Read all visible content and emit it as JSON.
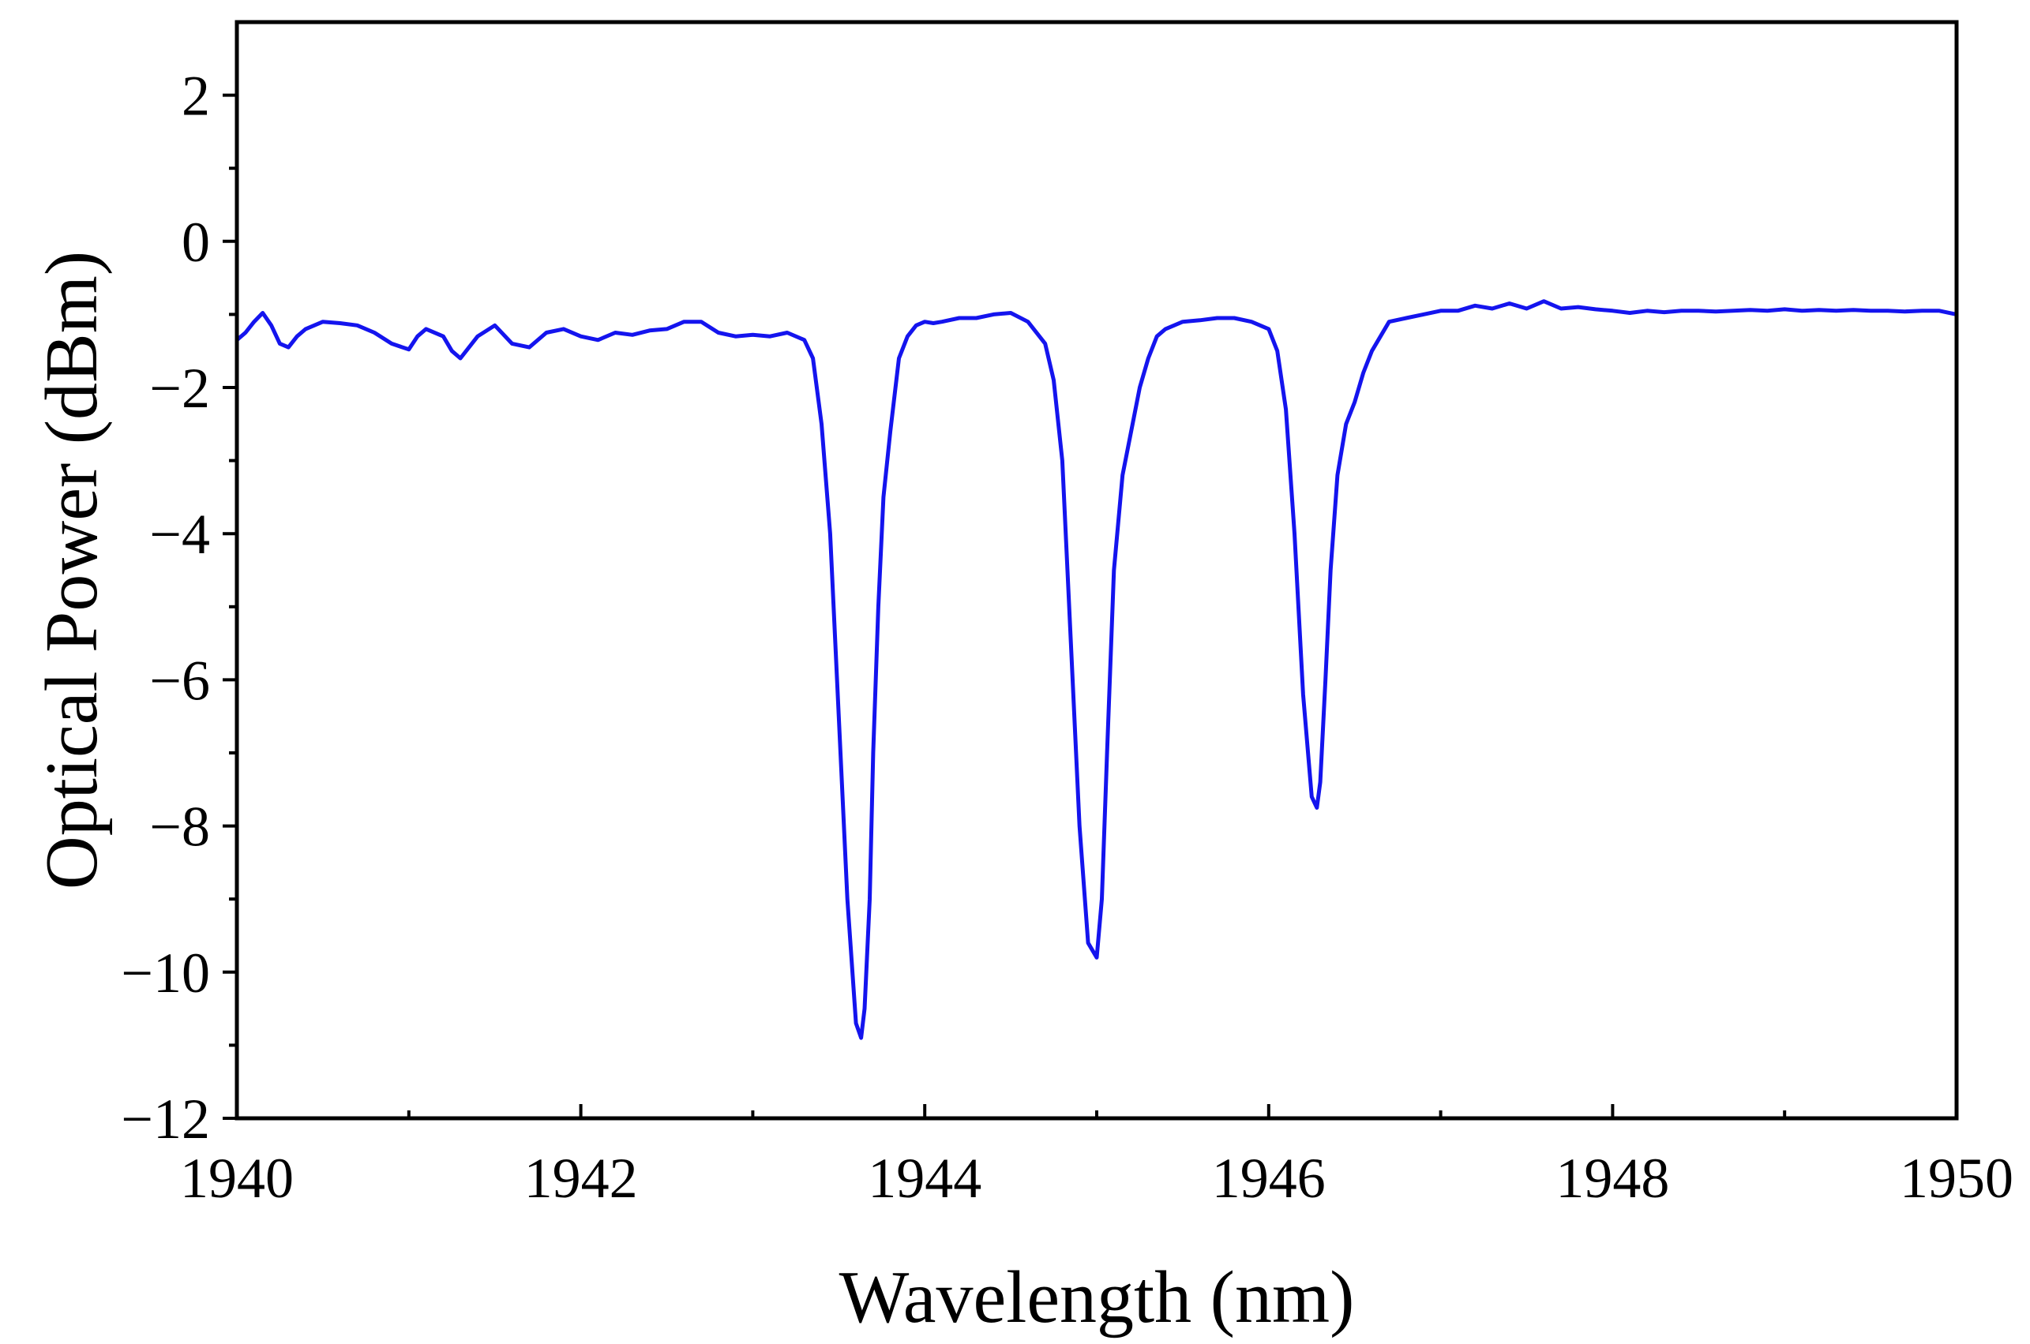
{
  "chart_data": {
    "type": "line",
    "title": "",
    "xlabel": "Wavelength (nm)",
    "ylabel": "Optical Power (dBm)",
    "xlim": [
      1940,
      1950
    ],
    "ylim": [
      -12,
      3
    ],
    "grid": false,
    "legend": "none",
    "x_major_ticks": [
      1940,
      1942,
      1944,
      1946,
      1948,
      1950
    ],
    "x_tick_labels": [
      "1940",
      "1942",
      "1944",
      "1946",
      "1948",
      "1950"
    ],
    "x_minor_ticks": [
      1941,
      1943,
      1945,
      1947,
      1949
    ],
    "y_major_ticks": [
      -12,
      -10,
      -8,
      -6,
      -4,
      -2,
      0,
      2
    ],
    "y_tick_labels": [
      "−12",
      "−10",
      "−8",
      "−6",
      "−4",
      "−2",
      "0",
      "2"
    ],
    "y_minor_ticks": [
      -11,
      -9,
      -7,
      -5,
      -3,
      -1,
      1
    ],
    "series": [
      {
        "name": "Optical Power",
        "color": "#1414ee",
        "x": [
          1940.0,
          1940.05,
          1940.1,
          1940.15,
          1940.2,
          1940.25,
          1940.3,
          1940.35,
          1940.4,
          1940.45,
          1940.5,
          1940.6,
          1940.7,
          1940.8,
          1940.9,
          1941.0,
          1941.05,
          1941.1,
          1941.2,
          1941.25,
          1941.3,
          1941.4,
          1941.5,
          1941.6,
          1941.7,
          1941.8,
          1941.9,
          1942.0,
          1942.1,
          1942.2,
          1942.3,
          1942.4,
          1942.5,
          1942.6,
          1942.7,
          1942.8,
          1942.9,
          1943.0,
          1943.1,
          1943.2,
          1943.3,
          1943.35,
          1943.4,
          1943.45,
          1943.5,
          1943.55,
          1943.6,
          1943.63,
          1943.65,
          1943.68,
          1943.7,
          1943.73,
          1943.76,
          1943.8,
          1943.85,
          1943.9,
          1943.95,
          1944.0,
          1944.05,
          1944.1,
          1944.2,
          1944.3,
          1944.4,
          1944.5,
          1944.6,
          1944.7,
          1944.75,
          1944.8,
          1944.85,
          1944.9,
          1944.95,
          1945.0,
          1945.03,
          1945.06,
          1945.1,
          1945.15,
          1945.2,
          1945.25,
          1945.3,
          1945.35,
          1945.4,
          1945.45,
          1945.5,
          1945.6,
          1945.7,
          1945.8,
          1945.9,
          1946.0,
          1946.05,
          1946.1,
          1946.15,
          1946.2,
          1946.25,
          1946.28,
          1946.3,
          1946.33,
          1946.36,
          1946.4,
          1946.45,
          1946.5,
          1946.55,
          1946.6,
          1946.65,
          1946.7,
          1946.8,
          1946.9,
          1947.0,
          1947.1,
          1947.2,
          1947.3,
          1947.4,
          1947.5,
          1947.6,
          1947.7,
          1947.8,
          1947.9,
          1948.0,
          1948.1,
          1948.2,
          1948.3,
          1948.4,
          1948.5,
          1948.6,
          1948.7,
          1948.8,
          1948.9,
          1949.0,
          1949.1,
          1949.2,
          1949.3,
          1949.4,
          1949.5,
          1949.6,
          1949.7,
          1949.8,
          1949.9,
          1950.0
        ],
        "y": [
          -1.35,
          -1.25,
          -1.1,
          -0.98,
          -1.15,
          -1.4,
          -1.45,
          -1.3,
          -1.2,
          -1.15,
          -1.1,
          -1.12,
          -1.15,
          -1.25,
          -1.4,
          -1.48,
          -1.3,
          -1.2,
          -1.3,
          -1.5,
          -1.6,
          -1.3,
          -1.15,
          -1.4,
          -1.45,
          -1.25,
          -1.2,
          -1.3,
          -1.35,
          -1.25,
          -1.28,
          -1.22,
          -1.2,
          -1.1,
          -1.1,
          -1.25,
          -1.3,
          -1.28,
          -1.3,
          -1.25,
          -1.35,
          -1.6,
          -2.5,
          -4.0,
          -6.5,
          -9.0,
          -10.7,
          -10.9,
          -10.5,
          -9.0,
          -7.0,
          -5.0,
          -3.5,
          -2.6,
          -1.6,
          -1.3,
          -1.15,
          -1.1,
          -1.12,
          -1.1,
          -1.05,
          -1.05,
          -1.0,
          -0.98,
          -1.1,
          -1.4,
          -1.9,
          -3.0,
          -5.5,
          -8.0,
          -9.6,
          -9.8,
          -9.0,
          -7.0,
          -4.5,
          -3.2,
          -2.6,
          -2.0,
          -1.6,
          -1.3,
          -1.2,
          -1.15,
          -1.1,
          -1.08,
          -1.05,
          -1.05,
          -1.1,
          -1.2,
          -1.5,
          -2.3,
          -4.0,
          -6.2,
          -7.6,
          -7.75,
          -7.4,
          -6.0,
          -4.5,
          -3.2,
          -2.5,
          -2.2,
          -1.8,
          -1.5,
          -1.3,
          -1.1,
          -1.05,
          -1.0,
          -0.95,
          -0.95,
          -0.88,
          -0.92,
          -0.85,
          -0.92,
          -0.82,
          -0.92,
          -0.9,
          -0.93,
          -0.95,
          -0.98,
          -0.95,
          -0.97,
          -0.95,
          -0.95,
          -0.96,
          -0.95,
          -0.94,
          -0.95,
          -0.93,
          -0.95,
          -0.94,
          -0.95,
          -0.94,
          -0.95,
          -0.95,
          -0.96,
          -0.95,
          -0.95,
          -1.0
        ]
      }
    ]
  }
}
